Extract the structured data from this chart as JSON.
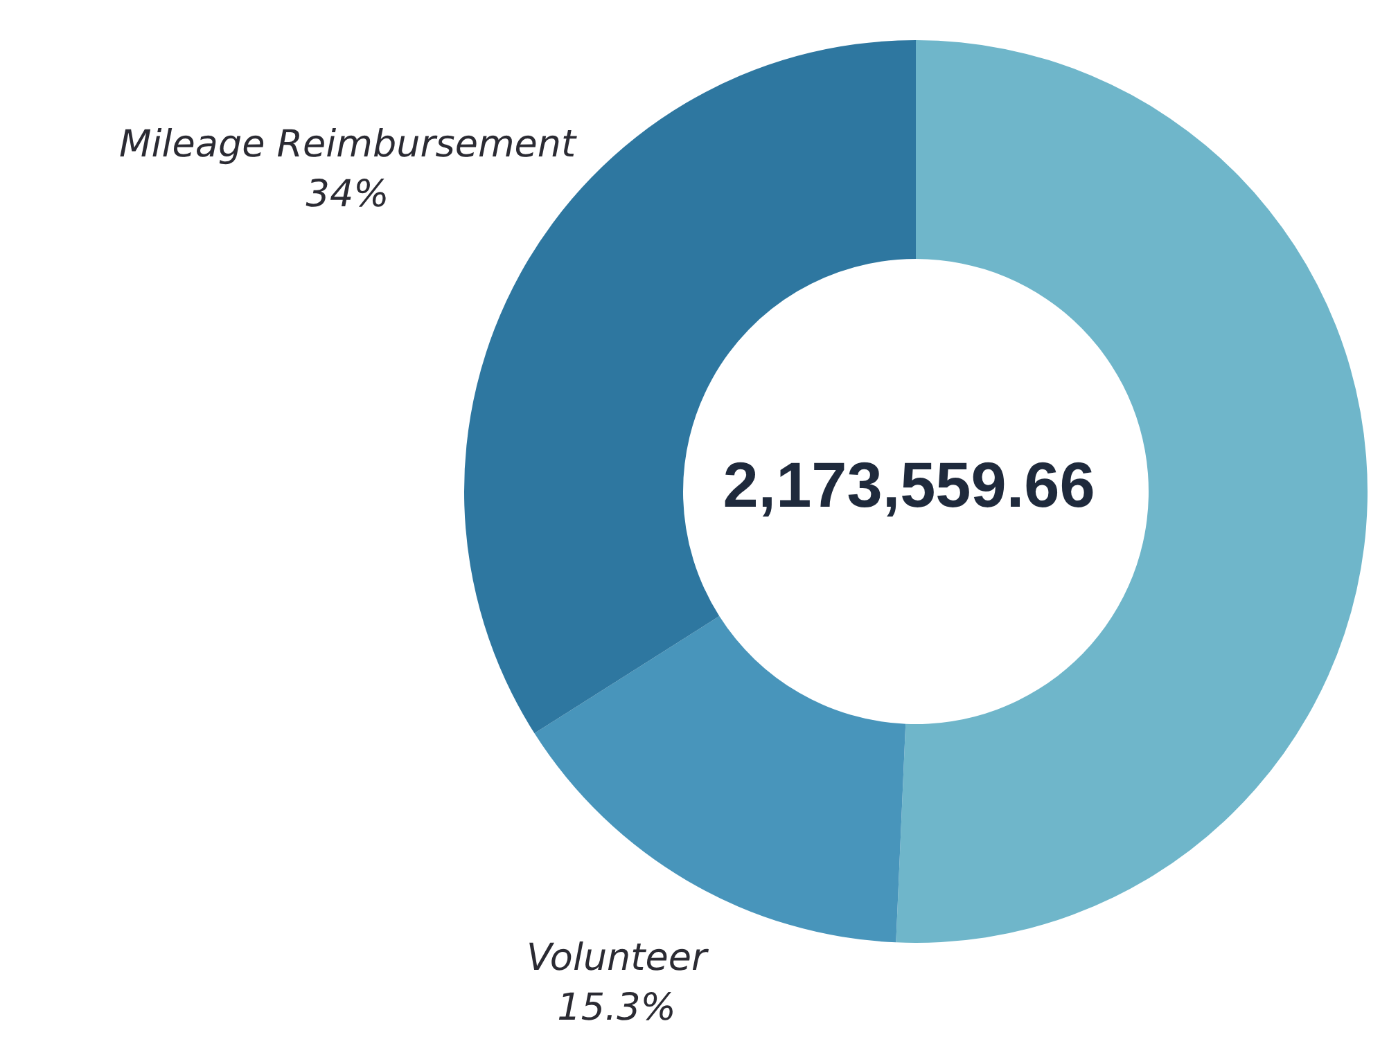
{
  "chart_data": {
    "type": "donut",
    "categories": [
      null,
      "Volunteer",
      "Mileage Reimbursement"
    ],
    "values": [
      50.7,
      15.3,
      34
    ],
    "colors": [
      "#6fb6ca",
      "#4895bb",
      "#2e77a0"
    ],
    "value_labels": [
      null,
      "15.3%",
      "34%"
    ],
    "annotations": [
      "2,173,559.66"
    ],
    "legend": false
  }
}
